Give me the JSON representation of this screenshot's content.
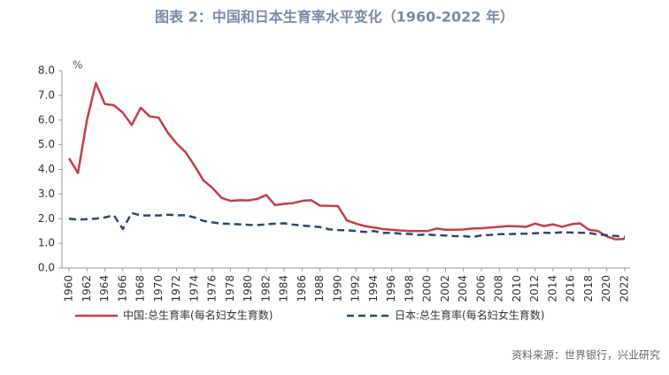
{
  "chart_data": {
    "type": "line",
    "title": "图表 2：中国和日本生育率水平变化（1960-2022 年）",
    "y_unit": "%",
    "source": "资料来源：世界银行，兴业研究",
    "x": [
      1960,
      1961,
      1962,
      1963,
      1964,
      1965,
      1966,
      1967,
      1968,
      1969,
      1970,
      1971,
      1972,
      1973,
      1974,
      1975,
      1976,
      1977,
      1978,
      1979,
      1980,
      1981,
      1982,
      1983,
      1984,
      1985,
      1986,
      1987,
      1988,
      1989,
      1990,
      1991,
      1992,
      1993,
      1994,
      1995,
      1996,
      1997,
      1998,
      1999,
      2000,
      2001,
      2002,
      2003,
      2004,
      2005,
      2006,
      2007,
      2008,
      2009,
      2010,
      2011,
      2012,
      2013,
      2014,
      2015,
      2016,
      2017,
      2018,
      2019,
      2020,
      2021,
      2022
    ],
    "series": [
      {
        "name": "中国:总生育率(每名妇女生育数)",
        "color": "#c0404f",
        "dash": false,
        "values": [
          4.45,
          3.85,
          6.0,
          7.5,
          6.65,
          6.6,
          6.3,
          5.8,
          6.5,
          6.15,
          6.1,
          5.5,
          5.05,
          4.7,
          4.15,
          3.55,
          3.25,
          2.85,
          2.72,
          2.75,
          2.74,
          2.8,
          2.96,
          2.55,
          2.6,
          2.63,
          2.72,
          2.75,
          2.53,
          2.52,
          2.51,
          1.93,
          1.8,
          1.7,
          1.64,
          1.58,
          1.55,
          1.52,
          1.5,
          1.5,
          1.5,
          1.6,
          1.55,
          1.55,
          1.56,
          1.6,
          1.61,
          1.64,
          1.67,
          1.7,
          1.69,
          1.67,
          1.8,
          1.7,
          1.77,
          1.67,
          1.77,
          1.81,
          1.55,
          1.5,
          1.28,
          1.16,
          1.18
        ]
      },
      {
        "name": "日本:总生育率(每名妇女生育数)",
        "color": "#2e4a6b",
        "dash": true,
        "values": [
          2.0,
          1.96,
          1.98,
          2.0,
          2.05,
          2.14,
          1.58,
          2.23,
          2.13,
          2.13,
          2.13,
          2.16,
          2.14,
          2.14,
          2.05,
          1.91,
          1.85,
          1.8,
          1.79,
          1.77,
          1.75,
          1.74,
          1.77,
          1.8,
          1.81,
          1.76,
          1.72,
          1.69,
          1.66,
          1.57,
          1.54,
          1.53,
          1.5,
          1.46,
          1.5,
          1.42,
          1.43,
          1.39,
          1.38,
          1.34,
          1.36,
          1.33,
          1.32,
          1.29,
          1.29,
          1.26,
          1.32,
          1.34,
          1.37,
          1.37,
          1.39,
          1.39,
          1.41,
          1.43,
          1.42,
          1.45,
          1.44,
          1.43,
          1.42,
          1.36,
          1.33,
          1.3,
          1.26
        ]
      }
    ],
    "xlim": [
      1960,
      2022
    ],
    "xticks": [
      1960,
      1962,
      1964,
      1966,
      1968,
      1970,
      1972,
      1974,
      1976,
      1978,
      1980,
      1982,
      1984,
      1986,
      1988,
      1990,
      1992,
      1994,
      1996,
      1998,
      2000,
      2002,
      2004,
      2006,
      2008,
      2010,
      2012,
      2014,
      2016,
      2018,
      2020,
      2022
    ],
    "ylim": [
      0,
      8
    ],
    "yticks": [
      {
        "value": 0,
        "label": "0.0"
      },
      {
        "value": 1,
        "label": "1.0"
      },
      {
        "value": 2,
        "label": "2.0"
      },
      {
        "value": 3,
        "label": "3.0"
      },
      {
        "value": 4,
        "label": "4.0"
      },
      {
        "value": 5,
        "label": "5.0"
      },
      {
        "value": 6,
        "label": "6.0"
      },
      {
        "value": 7,
        "label": "7.0"
      },
      {
        "value": 8,
        "label": "8.0"
      }
    ],
    "grid": false
  }
}
